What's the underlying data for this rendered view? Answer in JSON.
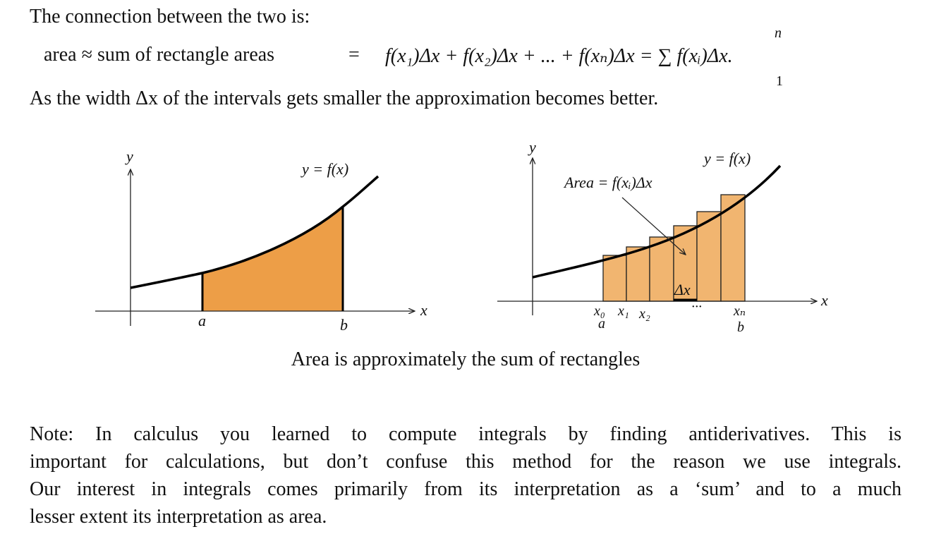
{
  "intro": "The connection between the two is:",
  "equation": {
    "lhs": "area ≈ sum of rectangle areas",
    "equals": "=",
    "rhs": "f(x₁)Δx + f(x₂)Δx + ... + f(xₙ)Δx = ∑ f(xᵢ)Δx.",
    "sum_upper": "n",
    "sum_lower": "1"
  },
  "sentence": "As the width Δx of the intervals gets smaller the approximation becomes better.",
  "figure_left": {
    "y_axis_label": "y",
    "x_axis_label": "x",
    "curve_label": "y = f(x)",
    "a_label": "a",
    "b_label": "b",
    "fill_color": "#ED9E47"
  },
  "figure_right": {
    "y_axis_label": "y",
    "x_axis_label": "x",
    "curve_label": "y = f(x)",
    "area_label": "Area = f(xᵢ)Δx",
    "dx_label": "Δx",
    "x0_label": "x₀",
    "x1_label": "x₁",
    "x2_label": "x₂",
    "dots_label": "···",
    "xn_label": "xₙ",
    "a_label": "a",
    "b_label": "b",
    "rect_color": "#F1B570"
  },
  "caption": "Area is approximately the sum of rectangles",
  "note": {
    "line1": "Note: In calculus you learned to compute integrals by finding antiderivatives. This is",
    "line2": "important for calculations, but don’t confuse this method for the reason we use integrals.",
    "line3": "Our interest in integrals comes primarily from its interpretation as a ‘sum’ and to a much",
    "line4": "lesser extent its interpretation as area."
  }
}
